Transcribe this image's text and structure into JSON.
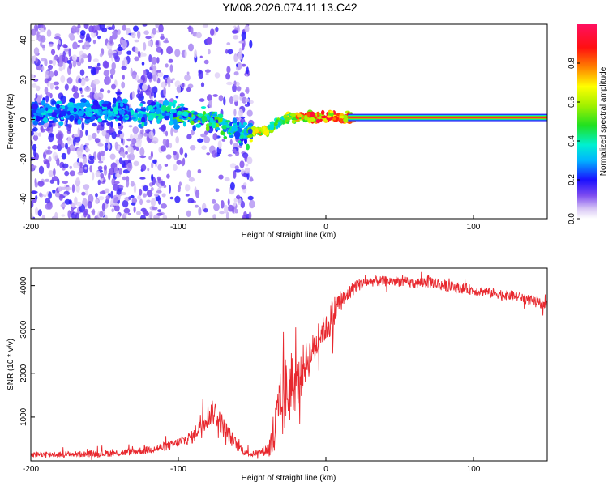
{
  "title": "YM08.2026.074.11.13.C42",
  "chart_data": [
    {
      "type": "heatmap",
      "title": "YM08.2026.074.11.13.C42",
      "xlabel": "Height of straight line (km)",
      "ylabel": "Frequency (Hz)",
      "xlim": [
        -200,
        150
      ],
      "ylim": [
        -50,
        48
      ],
      "xticks": [
        -200,
        -100,
        0,
        100
      ],
      "yticks": [
        -40,
        -20,
        0,
        20,
        40
      ],
      "grid": false,
      "colorbar": {
        "label": "Normalized spectral amplitude",
        "range": [
          0,
          1
        ],
        "ticks": [
          0.0,
          0.2,
          0.4,
          0.6,
          0.8
        ],
        "tick_labels": [
          "0.0",
          "0.2",
          "0.4",
          "0.6",
          "0.8"
        ]
      },
      "ridge": {
        "description_points_x": [
          -200,
          -175,
          -150,
          -125,
          -110,
          -100,
          -90,
          -80,
          -70,
          -60,
          -55,
          -50,
          -45,
          -40,
          -35,
          -30,
          -25,
          -20,
          -10,
          0,
          5,
          10,
          20,
          50,
          100,
          150
        ],
        "frequency_hz": [
          3,
          4,
          4,
          3,
          4,
          3,
          2,
          0,
          -3,
          -6,
          -8,
          -6,
          -6,
          -5,
          -3,
          -1,
          1,
          1,
          1,
          1,
          2,
          1,
          1,
          1,
          1,
          1
        ],
        "amplitude": [
          0.25,
          0.22,
          0.25,
          0.3,
          0.35,
          0.45,
          0.5,
          0.5,
          0.45,
          0.4,
          0.35,
          0.7,
          0.75,
          0.7,
          0.6,
          0.55,
          0.7,
          0.8,
          0.9,
          0.95,
          0.95,
          0.95,
          0.95,
          0.95,
          0.95,
          0.95
        ]
      }
    },
    {
      "type": "line",
      "xlabel": "Height of straight line (km)",
      "ylabel": "SNR (10 * v/v)",
      "xlim": [
        -200,
        150
      ],
      "ylim": [
        0,
        4400
      ],
      "xticks": [
        -200,
        -100,
        0,
        100
      ],
      "yticks": [
        1000,
        2000,
        3000,
        4000
      ],
      "grid": false,
      "series": [
        {
          "name": "SNR",
          "color": "#e8292f",
          "x": [
            -200,
            -170,
            -140,
            -120,
            -105,
            -90,
            -85,
            -80,
            -75,
            -70,
            -65,
            -60,
            -55,
            -50,
            -45,
            -40,
            -38,
            -35,
            -32,
            -30,
            -28,
            -25,
            -22,
            -20,
            -17,
            -15,
            -12,
            -10,
            -7,
            -5,
            -2,
            0,
            3,
            5,
            7,
            10,
            13,
            15,
            20,
            25,
            30,
            35,
            40,
            50,
            60,
            70,
            80,
            90,
            100,
            110,
            120,
            130,
            140,
            150
          ],
          "y": [
            150,
            150,
            180,
            250,
            350,
            550,
            850,
            1050,
            1100,
            800,
            550,
            350,
            200,
            150,
            200,
            250,
            300,
            600,
            1000,
            1200,
            1500,
            1600,
            1800,
            1700,
            1900,
            2200,
            2300,
            2500,
            2600,
            2800,
            3000,
            3000,
            3200,
            3300,
            3500,
            3700,
            3700,
            3800,
            4000,
            4050,
            4100,
            4100,
            4100,
            4100,
            4050,
            4100,
            4000,
            3950,
            3900,
            3850,
            3800,
            3750,
            3650,
            3550
          ],
          "noise_amplitude": [
            70,
            70,
            80,
            90,
            110,
            150,
            250,
            300,
            300,
            250,
            200,
            130,
            80,
            70,
            70,
            150,
            300,
            700,
            900,
            900,
            900,
            800,
            700,
            600,
            500,
            500,
            450,
            400,
            350,
            350,
            300,
            300,
            400,
            500,
            300,
            250,
            200,
            180,
            160,
            130,
            120,
            120,
            120,
            120,
            120,
            150,
            130,
            120,
            120,
            120,
            120,
            120,
            120,
            120
          ]
        }
      ]
    }
  ]
}
